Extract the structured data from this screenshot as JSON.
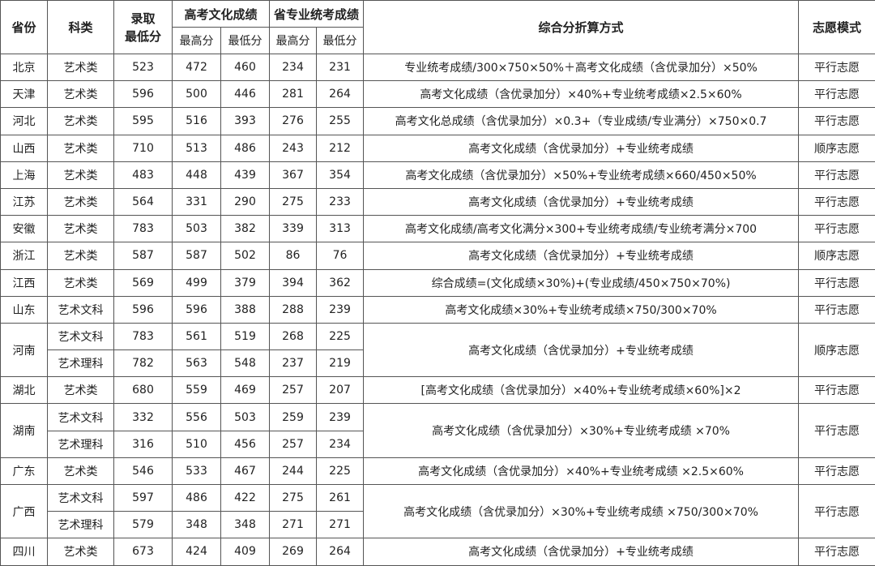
{
  "header": {
    "province": "省份",
    "category": "科类",
    "min_admit": "录取\n最低分",
    "culture": "高考文化成绩",
    "professional": "省专业统考成绩",
    "max": "最高分",
    "min": "最低分",
    "formula": "综合分折算方式",
    "mode": "志愿模式"
  },
  "provinces": [
    {
      "name": "北京",
      "formula": "专业统考成绩/300×750×50%＋高考文化成绩（含优录加分）×50%",
      "mode": "平行志愿",
      "rows": [
        {
          "category": "艺术类",
          "min_admit": "523",
          "culture_max": "472",
          "culture_min": "460",
          "pro_max": "234",
          "pro_min": "231"
        }
      ]
    },
    {
      "name": "天津",
      "formula": "高考文化成绩（含优录加分）×40%+专业统考成绩×2.5×60%",
      "mode": "平行志愿",
      "rows": [
        {
          "category": "艺术类",
          "min_admit": "596",
          "culture_max": "500",
          "culture_min": "446",
          "pro_max": "281",
          "pro_min": "264"
        }
      ]
    },
    {
      "name": "河北",
      "formula": "高考文化总成绩（含优录加分）×0.3+（专业成绩/专业满分）×750×0.7",
      "mode": "平行志愿",
      "rows": [
        {
          "category": "艺术类",
          "min_admit": "595",
          "culture_max": "516",
          "culture_min": "393",
          "pro_max": "276",
          "pro_min": "255"
        }
      ]
    },
    {
      "name": "山西",
      "formula": "高考文化成绩（含优录加分）+专业统考成绩",
      "mode": "顺序志愿",
      "rows": [
        {
          "category": "艺术类",
          "min_admit": "710",
          "culture_max": "513",
          "culture_min": "486",
          "pro_max": "243",
          "pro_min": "212"
        }
      ]
    },
    {
      "name": "上海",
      "formula": "高考文化成绩（含优录加分）×50%+专业统考成绩×660/450×50%",
      "mode": "平行志愿",
      "rows": [
        {
          "category": "艺术类",
          "min_admit": "483",
          "culture_max": "448",
          "culture_min": "439",
          "pro_max": "367",
          "pro_min": "354"
        }
      ]
    },
    {
      "name": "江苏",
      "formula": "高考文化成绩（含优录加分）+专业统考成绩",
      "mode": "平行志愿",
      "rows": [
        {
          "category": "艺术类",
          "min_admit": "564",
          "culture_max": "331",
          "culture_min": "290",
          "pro_max": "275",
          "pro_min": "233"
        }
      ]
    },
    {
      "name": "安徽",
      "formula": "高考文化成绩/高考文化满分×300+专业统考成绩/专业统考满分×700",
      "mode": "平行志愿",
      "rows": [
        {
          "category": "艺术类",
          "min_admit": "783",
          "culture_max": "503",
          "culture_min": "382",
          "pro_max": "339",
          "pro_min": "313"
        }
      ]
    },
    {
      "name": "浙江",
      "formula": "高考文化成绩（含优录加分）+专业统考成绩",
      "mode": "顺序志愿",
      "rows": [
        {
          "category": "艺术类",
          "min_admit": "587",
          "culture_max": "587",
          "culture_min": "502",
          "pro_max": "86",
          "pro_min": "76"
        }
      ]
    },
    {
      "name": "江西",
      "formula": "综合成绩=(文化成绩×30%)+(专业成绩/450×750×70%)",
      "mode": "平行志愿",
      "rows": [
        {
          "category": "艺术类",
          "min_admit": "569",
          "culture_max": "499",
          "culture_min": "379",
          "pro_max": "394",
          "pro_min": "362"
        }
      ]
    },
    {
      "name": "山东",
      "formula": "高考文化成绩×30%+专业统考成绩×750/300×70%",
      "mode": "平行志愿",
      "rows": [
        {
          "category": "艺术文科",
          "min_admit": "596",
          "culture_max": "596",
          "culture_min": "388",
          "pro_max": "288",
          "pro_min": "239"
        }
      ]
    },
    {
      "name": "河南",
      "formula": "高考文化成绩（含优录加分）+专业统考成绩",
      "mode": "顺序志愿",
      "rows": [
        {
          "category": "艺术文科",
          "min_admit": "783",
          "culture_max": "561",
          "culture_min": "519",
          "pro_max": "268",
          "pro_min": "225"
        },
        {
          "category": "艺术理科",
          "min_admit": "782",
          "culture_max": "563",
          "culture_min": "548",
          "pro_max": "237",
          "pro_min": "219"
        }
      ]
    },
    {
      "name": "湖北",
      "formula": "[高考文化成绩（含优录加分）×40%+专业统考成绩×60%]×2",
      "mode": "平行志愿",
      "rows": [
        {
          "category": "艺术类",
          "min_admit": "680",
          "culture_max": "559",
          "culture_min": "469",
          "pro_max": "257",
          "pro_min": "207"
        }
      ]
    },
    {
      "name": "湖南",
      "formula": "高考文化成绩（含优录加分）×30%+专业统考成绩 ×70%",
      "mode": "平行志愿",
      "rows": [
        {
          "category": "艺术文科",
          "min_admit": "332",
          "culture_max": "556",
          "culture_min": "503",
          "pro_max": "259",
          "pro_min": "239"
        },
        {
          "category": "艺术理科",
          "min_admit": "316",
          "culture_max": "510",
          "culture_min": "456",
          "pro_max": "257",
          "pro_min": "234"
        }
      ]
    },
    {
      "name": "广东",
      "formula": "高考文化成绩（含优录加分）×40%+专业统考成绩 ×2.5×60%",
      "mode": "平行志愿",
      "rows": [
        {
          "category": "艺术类",
          "min_admit": "546",
          "culture_max": "533",
          "culture_min": "467",
          "pro_max": "244",
          "pro_min": "225"
        }
      ]
    },
    {
      "name": "广西",
      "formula": "高考文化成绩（含优录加分）×30%+专业统考成绩 ×750/300×70%",
      "mode": "平行志愿",
      "rows": [
        {
          "category": "艺术文科",
          "min_admit": "597",
          "culture_max": "486",
          "culture_min": "422",
          "pro_max": "275",
          "pro_min": "261"
        },
        {
          "category": "艺术理科",
          "min_admit": "579",
          "culture_max": "348",
          "culture_min": "348",
          "pro_max": "271",
          "pro_min": "271"
        }
      ]
    },
    {
      "name": "四川",
      "formula": "高考文化成绩（含优录加分）+专业统考成绩",
      "mode": "平行志愿",
      "rows": [
        {
          "category": "艺术类",
          "min_admit": "673",
          "culture_max": "424",
          "culture_min": "409",
          "pro_max": "269",
          "pro_min": "264"
        }
      ]
    }
  ]
}
